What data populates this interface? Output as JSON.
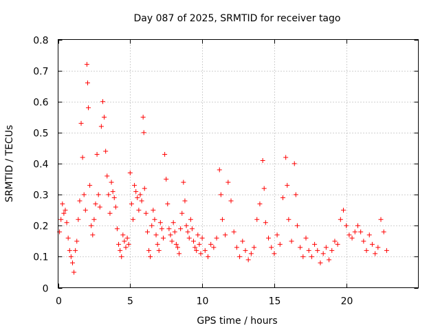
{
  "chart_data": {
    "type": "scatter",
    "title": "Day 087 of 2025, SRMTID for receiver tago",
    "xlabel": "GPS time / hours",
    "ylabel": "SRMTID / TECUs",
    "xlim": [
      0,
      25
    ],
    "ylim": [
      0,
      0.8
    ],
    "x_ticks": [
      0,
      5,
      10,
      15,
      20
    ],
    "x_tick_labels": [
      "0",
      "5",
      "10",
      "15",
      "20"
    ],
    "y_ticks": [
      0,
      0.1,
      0.2,
      0.3,
      0.4,
      0.5,
      0.6,
      0.7,
      0.8
    ],
    "y_tick_labels": [
      "0",
      "0.1",
      "0.2",
      "0.3",
      "0.4",
      "0.5",
      "0.6",
      "0.7",
      "0.8"
    ],
    "grid": true,
    "marker": "plus",
    "color": "#ff0000",
    "series": [
      {
        "name": "SRMTID",
        "points": [
          [
            0.1,
            0.18
          ],
          [
            0.2,
            0.22
          ],
          [
            0.3,
            0.27
          ],
          [
            0.4,
            0.24
          ],
          [
            0.5,
            0.25
          ],
          [
            0.6,
            0.21
          ],
          [
            0.7,
            0.16
          ],
          [
            0.8,
            0.12
          ],
          [
            0.9,
            0.1
          ],
          [
            1.0,
            0.08
          ],
          [
            1.1,
            0.05
          ],
          [
            1.2,
            0.12
          ],
          [
            1.3,
            0.15
          ],
          [
            1.4,
            0.22
          ],
          [
            1.5,
            0.28
          ],
          [
            1.6,
            0.53
          ],
          [
            1.7,
            0.42
          ],
          [
            1.8,
            0.3
          ],
          [
            1.9,
            0.25
          ],
          [
            2.0,
            0.72
          ],
          [
            2.05,
            0.66
          ],
          [
            2.1,
            0.58
          ],
          [
            2.2,
            0.33
          ],
          [
            2.3,
            0.2
          ],
          [
            2.4,
            0.17
          ],
          [
            2.5,
            0.22
          ],
          [
            2.6,
            0.27
          ],
          [
            2.7,
            0.43
          ],
          [
            2.8,
            0.3
          ],
          [
            2.9,
            0.26
          ],
          [
            3.0,
            0.52
          ],
          [
            3.1,
            0.6
          ],
          [
            3.2,
            0.55
          ],
          [
            3.3,
            0.44
          ],
          [
            3.4,
            0.36
          ],
          [
            3.5,
            0.3
          ],
          [
            3.6,
            0.24
          ],
          [
            3.7,
            0.34
          ],
          [
            3.8,
            0.31
          ],
          [
            3.9,
            0.29
          ],
          [
            4.0,
            0.26
          ],
          [
            4.1,
            0.19
          ],
          [
            4.2,
            0.14
          ],
          [
            4.3,
            0.12
          ],
          [
            4.4,
            0.1
          ],
          [
            4.5,
            0.17
          ],
          [
            4.6,
            0.15
          ],
          [
            4.7,
            0.13
          ],
          [
            4.8,
            0.16
          ],
          [
            4.9,
            0.14
          ],
          [
            5.0,
            0.37
          ],
          [
            5.1,
            0.27
          ],
          [
            5.2,
            0.22
          ],
          [
            5.3,
            0.33
          ],
          [
            5.4,
            0.31
          ],
          [
            5.5,
            0.29
          ],
          [
            5.6,
            0.25
          ],
          [
            5.7,
            0.3
          ],
          [
            5.8,
            0.28
          ],
          [
            5.9,
            0.55
          ],
          [
            5.95,
            0.5
          ],
          [
            6.0,
            0.32
          ],
          [
            6.1,
            0.24
          ],
          [
            6.2,
            0.18
          ],
          [
            6.3,
            0.12
          ],
          [
            6.4,
            0.1
          ],
          [
            6.5,
            0.2
          ],
          [
            6.6,
            0.25
          ],
          [
            6.7,
            0.22
          ],
          [
            6.8,
            0.17
          ],
          [
            6.9,
            0.14
          ],
          [
            7.0,
            0.12
          ],
          [
            7.1,
            0.21
          ],
          [
            7.2,
            0.19
          ],
          [
            7.3,
            0.16
          ],
          [
            7.4,
            0.43
          ],
          [
            7.5,
            0.35
          ],
          [
            7.6,
            0.27
          ],
          [
            7.7,
            0.19
          ],
          [
            7.8,
            0.17
          ],
          [
            7.9,
            0.15
          ],
          [
            8.0,
            0.21
          ],
          [
            8.1,
            0.18
          ],
          [
            8.2,
            0.14
          ],
          [
            8.3,
            0.13
          ],
          [
            8.4,
            0.11
          ],
          [
            8.5,
            0.19
          ],
          [
            8.6,
            0.24
          ],
          [
            8.7,
            0.34
          ],
          [
            8.8,
            0.28
          ],
          [
            8.9,
            0.2
          ],
          [
            9.0,
            0.18
          ],
          [
            9.1,
            0.16
          ],
          [
            9.2,
            0.22
          ],
          [
            9.3,
            0.19
          ],
          [
            9.4,
            0.15
          ],
          [
            9.5,
            0.13
          ],
          [
            9.6,
            0.12
          ],
          [
            9.7,
            0.17
          ],
          [
            9.8,
            0.14
          ],
          [
            9.9,
            0.11
          ],
          [
            10.0,
            0.16
          ],
          [
            10.2,
            0.12
          ],
          [
            10.4,
            0.1
          ],
          [
            10.6,
            0.14
          ],
          [
            10.8,
            0.13
          ],
          [
            11.0,
            0.16
          ],
          [
            11.2,
            0.38
          ],
          [
            11.3,
            0.3
          ],
          [
            11.4,
            0.22
          ],
          [
            11.6,
            0.17
          ],
          [
            11.8,
            0.34
          ],
          [
            12.0,
            0.28
          ],
          [
            12.2,
            0.18
          ],
          [
            12.4,
            0.13
          ],
          [
            12.6,
            0.1
          ],
          [
            12.8,
            0.15
          ],
          [
            13.0,
            0.12
          ],
          [
            13.2,
            0.09
          ],
          [
            13.4,
            0.11
          ],
          [
            13.6,
            0.13
          ],
          [
            13.8,
            0.22
          ],
          [
            14.0,
            0.27
          ],
          [
            14.2,
            0.41
          ],
          [
            14.3,
            0.32
          ],
          [
            14.4,
            0.21
          ],
          [
            14.6,
            0.16
          ],
          [
            14.8,
            0.13
          ],
          [
            15.0,
            0.11
          ],
          [
            15.2,
            0.17
          ],
          [
            15.4,
            0.14
          ],
          [
            15.6,
            0.29
          ],
          [
            15.8,
            0.42
          ],
          [
            15.9,
            0.33
          ],
          [
            16.0,
            0.22
          ],
          [
            16.2,
            0.15
          ],
          [
            16.4,
            0.4
          ],
          [
            16.5,
            0.3
          ],
          [
            16.6,
            0.2
          ],
          [
            16.8,
            0.13
          ],
          [
            17.0,
            0.1
          ],
          [
            17.2,
            0.16
          ],
          [
            17.4,
            0.12
          ],
          [
            17.6,
            0.1
          ],
          [
            17.8,
            0.14
          ],
          [
            18.0,
            0.12
          ],
          [
            18.2,
            0.08
          ],
          [
            18.4,
            0.11
          ],
          [
            18.6,
            0.13
          ],
          [
            18.8,
            0.09
          ],
          [
            19.0,
            0.12
          ],
          [
            19.2,
            0.15
          ],
          [
            19.4,
            0.14
          ],
          [
            19.6,
            0.22
          ],
          [
            19.8,
            0.25
          ],
          [
            20.0,
            0.2
          ],
          [
            20.2,
            0.17
          ],
          [
            20.4,
            0.16
          ],
          [
            20.6,
            0.18
          ],
          [
            20.8,
            0.2
          ],
          [
            21.0,
            0.18
          ],
          [
            21.2,
            0.15
          ],
          [
            21.4,
            0.12
          ],
          [
            21.6,
            0.17
          ],
          [
            21.8,
            0.14
          ],
          [
            22.0,
            0.11
          ],
          [
            22.2,
            0.13
          ],
          [
            22.4,
            0.22
          ],
          [
            22.6,
            0.18
          ],
          [
            22.8,
            0.12
          ]
        ]
      }
    ]
  }
}
